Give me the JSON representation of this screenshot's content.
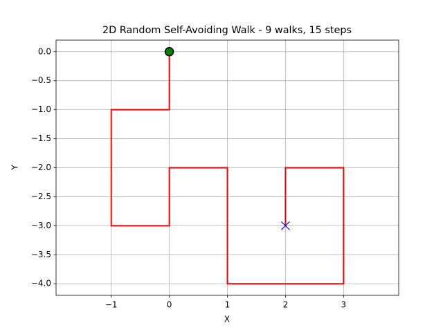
{
  "chart_data": {
    "type": "line",
    "title": "2D Random Self-Avoiding Walk - 9 walks, 15 steps",
    "x_label": "X",
    "y_label": "Y",
    "series": [
      {
        "color": "#ff0000",
        "x": [
          0,
          0,
          -1,
          -1,
          -1,
          0,
          0,
          1,
          1,
          1,
          2,
          3,
          3,
          3,
          2,
          2
        ],
        "y": [
          0,
          -1,
          -1,
          -2,
          -3,
          -3,
          -2,
          -2,
          -3,
          -4,
          -4,
          -4,
          -3,
          -2,
          -2,
          -3
        ]
      }
    ],
    "start_color": "#008000",
    "end_color": "#0000ff",
    "xlim": [
      -1.95,
      3.95
    ],
    "ylim": [
      -4.2,
      0.2
    ],
    "xticks": [
      {
        "value": -1,
        "label": "−1"
      },
      0,
      1,
      2,
      3
    ],
    "yticks": [
      {
        "value": 0,
        "label": "0.0"
      },
      {
        "value": -0.5,
        "label": "−0.5"
      },
      {
        "value": -1,
        "label": "−1.0"
      },
      {
        "value": -1.5,
        "label": "−1.5"
      },
      {
        "value": -2,
        "label": "−2.0"
      },
      {
        "value": -2.5,
        "label": "−2.5"
      },
      {
        "value": -3,
        "label": "−3.0"
      },
      {
        "value": -3.5,
        "label": "−3.5"
      },
      {
        "value": -4,
        "label": "−4.0"
      }
    ],
    "grid": true
  }
}
